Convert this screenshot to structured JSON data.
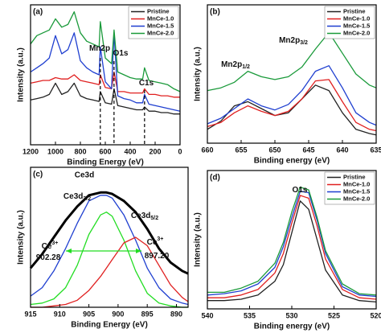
{
  "chart_data": [
    {
      "type": "line",
      "panel_label": "(a)",
      "x_label": "Binding Energy (eV)",
      "y_label": "Intensity (a.u.)",
      "x": [
        1200,
        1150,
        1100,
        1050,
        1000,
        950,
        900,
        850,
        800,
        750,
        700,
        650,
        640,
        600,
        550,
        530,
        500,
        450,
        400,
        350,
        300,
        285,
        250,
        200,
        150,
        100,
        50,
        0
      ],
      "xlim": [
        1200,
        0
      ],
      "xticks": [
        1200,
        1000,
        800,
        600,
        400,
        200,
        0
      ],
      "ylim": [
        0,
        100
      ],
      "legend": "upper right",
      "series": [
        {
          "name": "Pristine",
          "color": "#222222",
          "values": [
            32,
            33,
            34,
            36,
            44,
            36,
            38,
            44,
            35,
            33,
            32,
            31,
            38,
            30,
            29,
            40,
            28,
            27,
            26,
            25,
            25,
            27,
            24,
            24,
            23,
            23,
            22,
            22
          ]
        },
        {
          "name": "MnCe-1.0",
          "color": "#e02020",
          "values": [
            44,
            45,
            46,
            46,
            48,
            47,
            47,
            50,
            46,
            45,
            44,
            43,
            50,
            41,
            40,
            52,
            38,
            38,
            37,
            37,
            37,
            40,
            36,
            36,
            35,
            35,
            34,
            34
          ]
        },
        {
          "name": "MnCe-1.5",
          "color": "#1f3fd0",
          "values": [
            52,
            55,
            58,
            62,
            78,
            65,
            68,
            80,
            60,
            55,
            52,
            50,
            70,
            45,
            40,
            80,
            35,
            33,
            32,
            30,
            30,
            36,
            29,
            28,
            27,
            26,
            25,
            24
          ]
        },
        {
          "name": "MnCe-2.0",
          "color": "#1a9a3a",
          "values": [
            72,
            78,
            80,
            82,
            90,
            84,
            86,
            95,
            80,
            74,
            72,
            70,
            88,
            62,
            58,
            82,
            52,
            50,
            48,
            47,
            47,
            55,
            46,
            45,
            44,
            43,
            40,
            38
          ]
        }
      ],
      "annotations": [
        {
          "text": "Mn2p",
          "x": 640
        },
        {
          "text": "O1s",
          "x": 530
        },
        {
          "text": "C1s",
          "x": 285
        }
      ]
    },
    {
      "type": "line",
      "panel_label": "(b)",
      "x_label": "Binding energy (eV)",
      "y_label": "Intensity (a.u.)",
      "x": [
        660,
        658,
        656,
        654,
        652,
        650,
        648,
        646,
        644,
        642,
        640,
        638,
        636,
        635
      ],
      "xlim": [
        660,
        635
      ],
      "xticks": [
        660,
        655,
        650,
        645,
        640,
        635
      ],
      "ylim": [
        0,
        100
      ],
      "legend": "upper right",
      "series": [
        {
          "name": "Pristine",
          "color": "#222222",
          "values": [
            10,
            16,
            27,
            30,
            25,
            20,
            22,
            32,
            42,
            38,
            22,
            10,
            7,
            6
          ]
        },
        {
          "name": "MnCe-1.0",
          "color": "#e02020",
          "values": [
            12,
            15,
            22,
            27,
            23,
            20,
            23,
            32,
            45,
            46,
            30,
            15,
            10,
            9
          ]
        },
        {
          "name": "MnCe-1.5",
          "color": "#1f3fd0",
          "values": [
            14,
            18,
            25,
            32,
            27,
            24,
            28,
            38,
            52,
            56,
            40,
            22,
            15,
            13
          ]
        },
        {
          "name": "MnCe-2.0",
          "color": "#1a9a3a",
          "values": [
            38,
            40,
            44,
            52,
            48,
            46,
            48,
            55,
            68,
            80,
            65,
            50,
            42,
            40
          ]
        }
      ],
      "annotations": [
        {
          "text": "Mn2p",
          "sub": "1/2"
        },
        {
          "text": "Mn2p",
          "sub": "3/2"
        }
      ]
    },
    {
      "type": "line",
      "panel_label": "(c)",
      "title": "Ce3d",
      "x_label": "Binding Energy (eV)",
      "y_label": "Intensity (a.u.)",
      "x": [
        915,
        913,
        911,
        909,
        907,
        905,
        903,
        902,
        901,
        899,
        897,
        895,
        893,
        891,
        889,
        888
      ],
      "xlim": [
        915,
        888
      ],
      "xticks": [
        915,
        910,
        905,
        900,
        895,
        890
      ],
      "ylim": [
        0,
        100
      ],
      "series": [
        {
          "color": "#000000",
          "values": [
            28,
            38,
            50,
            62,
            72,
            80,
            82,
            82,
            81,
            76,
            68,
            56,
            42,
            32,
            26,
            24
          ]
        },
        {
          "color": "#1f3fd0",
          "values": [
            8,
            14,
            26,
            42,
            60,
            76,
            80,
            80,
            78,
            66,
            48,
            28,
            14,
            6,
            3,
            2
          ]
        },
        {
          "color": "#22dd22",
          "values": [
            2,
            3,
            6,
            14,
            30,
            52,
            66,
            68,
            65,
            48,
            26,
            10,
            3,
            1,
            0,
            0
          ]
        },
        {
          "color": "#e02020",
          "values": [
            0,
            0,
            1,
            2,
            5,
            12,
            22,
            28,
            34,
            46,
            50,
            44,
            30,
            16,
            7,
            4
          ]
        }
      ],
      "annotations": [
        {
          "text": "Ce3d",
          "sub": "3/2"
        },
        {
          "text": "Ce3d",
          "sub": "5/2"
        },
        {
          "text": "Ce",
          "sup": "3+"
        },
        {
          "text": "902.28"
        },
        {
          "text": "Ce",
          "sup": "3+"
        },
        {
          "text": "897.20"
        }
      ]
    },
    {
      "type": "line",
      "panel_label": "(d)",
      "x_label": "Binding energy (eV)",
      "y_label": "Intensity (a.u.)",
      "x": [
        540,
        538,
        536,
        534,
        532,
        531,
        530,
        529,
        528,
        527,
        526,
        524,
        522,
        520
      ],
      "xlim": [
        540,
        520
      ],
      "xticks": [
        540,
        535,
        530,
        525,
        520
      ],
      "ylim": [
        0,
        100
      ],
      "legend": "upper right",
      "series": [
        {
          "name": "Pristine",
          "color": "#222222",
          "values": [
            6,
            6,
            7,
            10,
            20,
            32,
            55,
            78,
            72,
            50,
            28,
            10,
            6,
            5
          ]
        },
        {
          "name": "MnCe-1.0",
          "color": "#e02020",
          "values": [
            8,
            8,
            10,
            14,
            26,
            40,
            62,
            82,
            80,
            60,
            36,
            14,
            8,
            7
          ]
        },
        {
          "name": "MnCe-1.5",
          "color": "#1f3fd0",
          "values": [
            10,
            11,
            13,
            18,
            30,
            45,
            66,
            85,
            84,
            64,
            40,
            16,
            10,
            9
          ]
        },
        {
          "name": "MnCe-2.0",
          "color": "#1a9a3a",
          "values": [
            12,
            12,
            15,
            20,
            33,
            48,
            70,
            88,
            86,
            66,
            42,
            18,
            11,
            10
          ]
        }
      ],
      "annotations": [
        {
          "text": "O1s"
        }
      ]
    }
  ]
}
